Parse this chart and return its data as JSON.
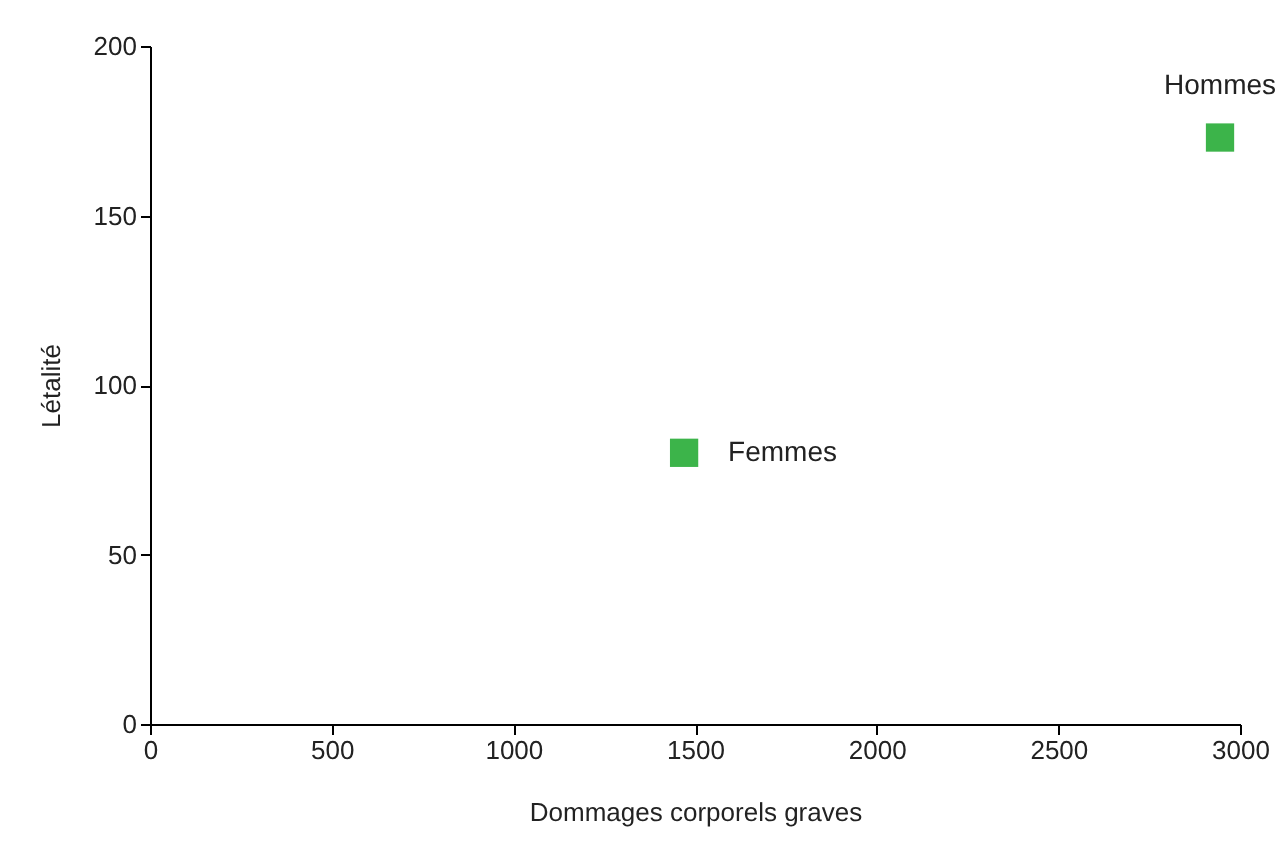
{
  "chart_data": {
    "type": "scatter",
    "xlabel": "Dommages corporels graves",
    "ylabel": "Létalité",
    "series": [
      {
        "name": "Femmes",
        "color": "#3cb44a",
        "x": [
          1470
        ],
        "values": [
          80
        ]
      },
      {
        "name": "Hommes",
        "color": "#3cb44a",
        "x": [
          2945
        ],
        "values": [
          173
        ]
      }
    ],
    "xlim": [
      0,
      3000
    ],
    "xticks": [
      0,
      500,
      1000,
      1500,
      2000,
      2500,
      3000
    ],
    "ylim": [
      0,
      200
    ],
    "yticks": [
      0,
      50,
      100,
      150,
      200
    ],
    "grid": false,
    "marker": "square"
  }
}
